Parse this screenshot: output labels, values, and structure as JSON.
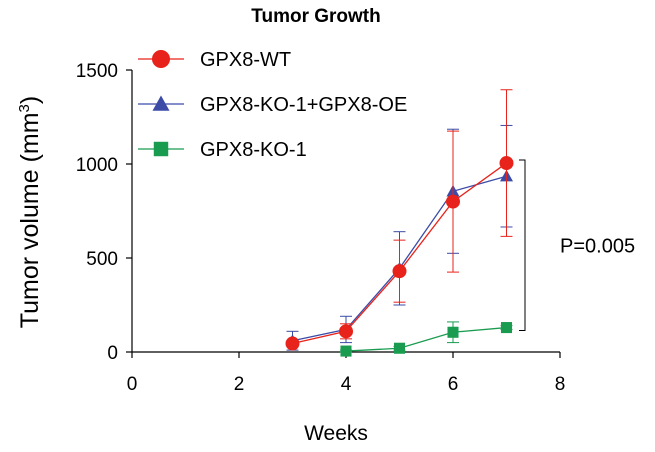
{
  "chart_data": {
    "type": "line",
    "title": "Tumor Growth",
    "xlabel": "Weeks",
    "ylabel": "Tumor volume (mm",
    "ylabel_sup": "3",
    "ylabel_close": ")",
    "xlim": [
      0,
      8
    ],
    "ylim": [
      0,
      1500
    ],
    "xticks": [
      0,
      2,
      4,
      6,
      8
    ],
    "yticks": [
      0,
      500,
      1000,
      1500
    ],
    "xtick_labels": [
      "0",
      "2",
      "4",
      "6",
      "8"
    ],
    "ytick_labels": [
      "0",
      "500",
      "1000",
      "1500"
    ],
    "grid": false,
    "legend_position": "top-left",
    "series": [
      {
        "name": "GPX8-WT",
        "color": "#e8231b",
        "marker": "circle",
        "x": [
          3,
          4,
          5,
          6,
          7
        ],
        "y": [
          45,
          110,
          430,
          800,
          1005
        ],
        "err": [
          10,
          40,
          165,
          375,
          390
        ]
      },
      {
        "name": "GPX8-KO-1+GPX8-OE",
        "color": "#3b4ba6",
        "marker": "triangle",
        "x": [
          3,
          4,
          5,
          6,
          7
        ],
        "y": [
          60,
          120,
          445,
          855,
          935
        ],
        "err": [
          50,
          70,
          195,
          330,
          270
        ]
      },
      {
        "name": "GPX8-KO-1",
        "color": "#1a9c50",
        "marker": "square",
        "x": [
          4,
          5,
          6,
          7
        ],
        "y": [
          5,
          20,
          105,
          130
        ],
        "err": [
          5,
          10,
          55,
          10
        ]
      }
    ],
    "annotations": [
      {
        "text": "P=0.005",
        "type": "bracket",
        "from_y": 1005,
        "to_y": 130
      }
    ]
  }
}
